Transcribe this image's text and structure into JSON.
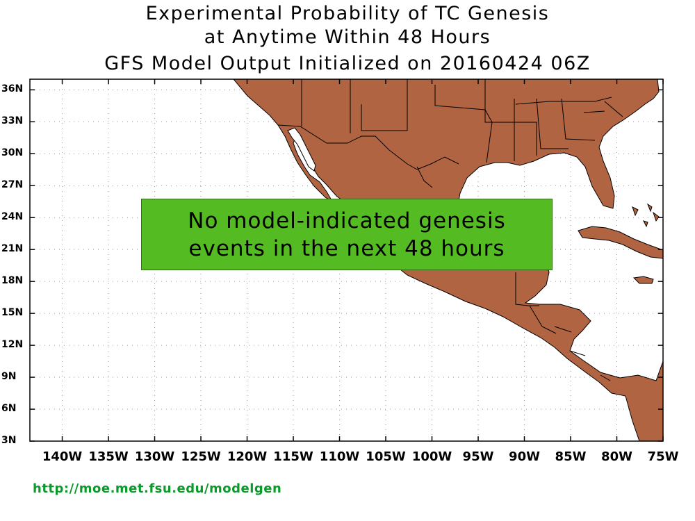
{
  "title": {
    "line1": "Experimental Probability of TC Genesis",
    "line2": "at Anytime Within 48 Hours",
    "line3": "GFS Model Output Initialized on 20160424 06Z"
  },
  "map": {
    "lat_range": [
      3,
      37
    ],
    "lon_range": [
      -143.5,
      -75
    ],
    "lat_labels": [
      "36N",
      "33N",
      "30N",
      "27N",
      "24N",
      "21N",
      "18N",
      "15N",
      "12N",
      "9N",
      "6N",
      "3N"
    ],
    "lon_labels": [
      "140W",
      "135W",
      "130W",
      "125W",
      "120W",
      "115W",
      "110W",
      "105W",
      "100W",
      "95W",
      "90W",
      "85W",
      "80W",
      "75W"
    ],
    "land_color": "#b06442",
    "grid": "dotted"
  },
  "notice": {
    "line1": "No model-indicated genesis",
    "line2": "events in the next 48 hours",
    "color": "#55bb22"
  },
  "footer": {
    "url": "http://moe.met.fsu.edu/modelgen"
  }
}
